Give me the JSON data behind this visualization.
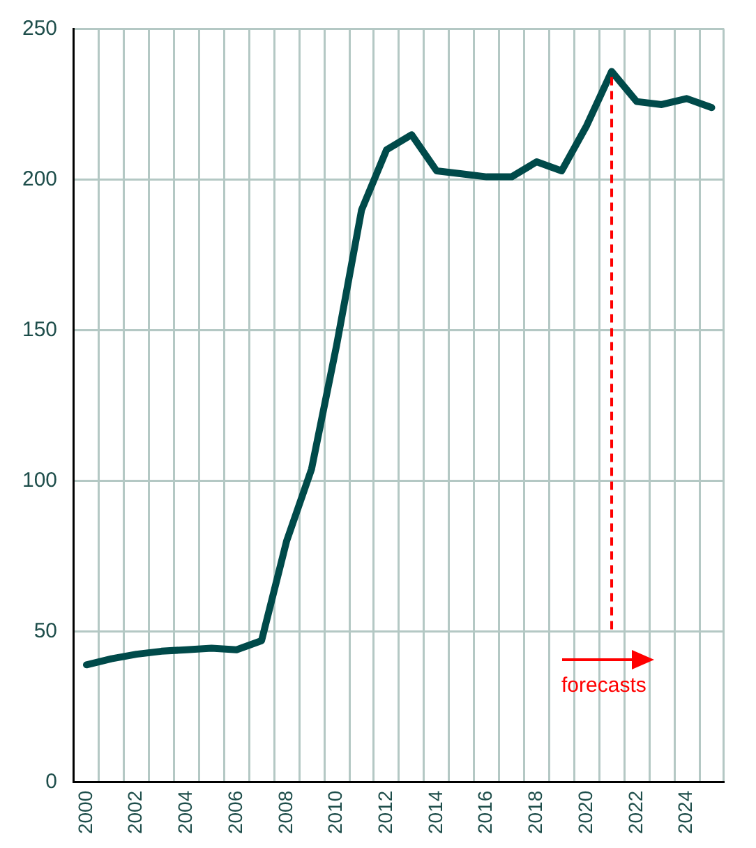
{
  "chart_data": {
    "type": "line",
    "x": [
      2000,
      2001,
      2002,
      2003,
      2004,
      2005,
      2006,
      2007,
      2008,
      2009,
      2010,
      2011,
      2012,
      2013,
      2014,
      2015,
      2016,
      2017,
      2018,
      2019,
      2020,
      2021,
      2022,
      2023,
      2024,
      2025
    ],
    "series": [
      {
        "color": "#004a4a",
        "values": [
          39,
          41,
          42.5,
          43.5,
          44,
          44.5,
          44,
          47,
          80,
          104,
          145,
          190,
          210,
          215,
          203,
          202,
          201,
          201,
          206,
          203,
          218,
          236,
          226,
          225,
          227,
          224
        ]
      }
    ],
    "xlim": [
      1999.5,
      2025.5
    ],
    "xticks": [
      2000,
      {
        "value": 2000.5,
        "label": null
      },
      {
        "value": 2001.5,
        "label": null
      },
      2002,
      {
        "value": 2002.5,
        "label": null
      },
      {
        "value": 2003.5,
        "label": null
      },
      2004,
      {
        "value": 2004.5,
        "label": null
      },
      {
        "value": 2005.5,
        "label": null
      },
      2006,
      {
        "value": 2006.5,
        "label": null
      },
      {
        "value": 2007.5,
        "label": null
      },
      2008,
      {
        "value": 2008.5,
        "label": null
      },
      {
        "value": 2009.5,
        "label": null
      },
      2010,
      {
        "value": 2010.5,
        "label": null
      },
      {
        "value": 2011.5,
        "label": null
      },
      2012,
      {
        "value": 2012.5,
        "label": null
      },
      {
        "value": 2013.5,
        "label": null
      },
      2014,
      {
        "value": 2014.5,
        "label": null
      },
      {
        "value": 2015.5,
        "label": null
      },
      2016,
      {
        "value": 2016.5,
        "label": null
      },
      {
        "value": 2017.5,
        "label": null
      },
      2018,
      {
        "value": 2018.5,
        "label": null
      },
      {
        "value": 2019.5,
        "label": null
      },
      2020,
      {
        "value": 2020.5,
        "label": null
      },
      {
        "value": 2021.5,
        "label": null
      },
      2022,
      {
        "value": 2022.5,
        "label": null
      },
      {
        "value": 2023.5,
        "label": null
      },
      2024,
      {
        "value": 2024.5,
        "label": null
      },
      {
        "value": 2025.5,
        "label": null
      }
    ],
    "ylim": [
      0,
      250
    ],
    "yticks": [
      0,
      50,
      100,
      150,
      200,
      250
    ],
    "grid": true,
    "legend": false,
    "marker": "none",
    "line_style": "solid",
    "ref_lines": [
      {
        "axis": "x",
        "value": 2021,
        "label": "forecasts",
        "color": "#ff0000",
        "line_style": "dashed"
      }
    ]
  }
}
